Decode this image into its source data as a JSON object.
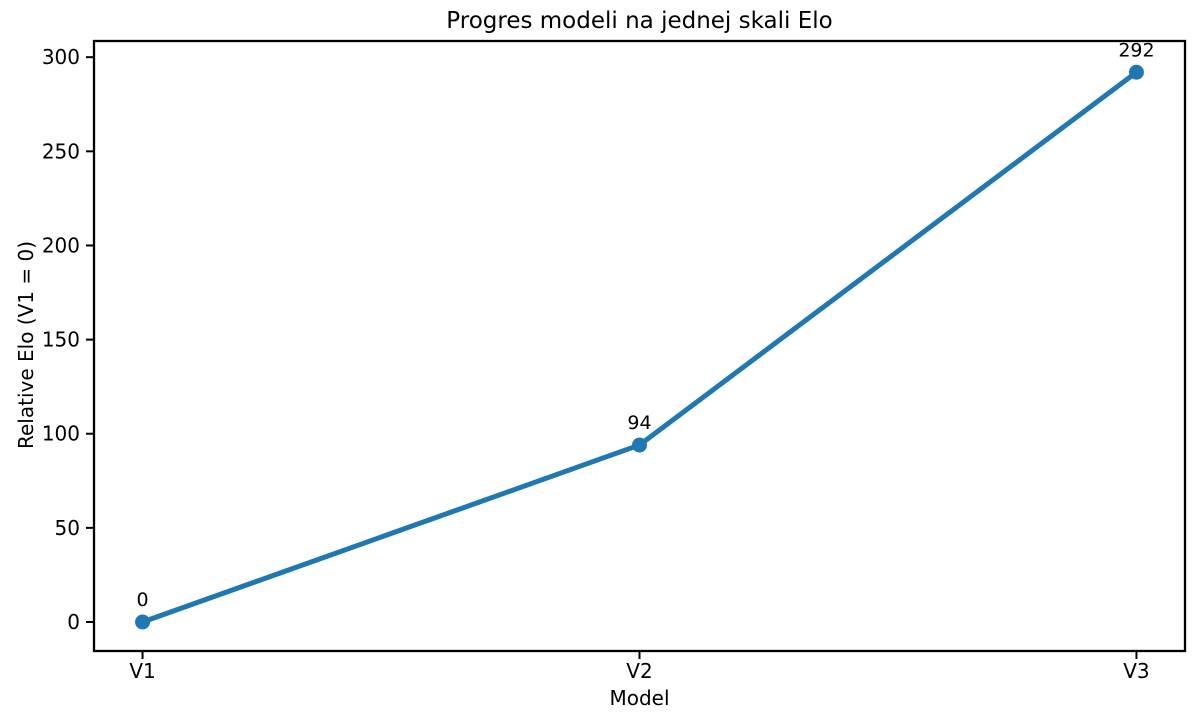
{
  "chart_data": {
    "type": "line",
    "title": "Progres modeli na jednej skali Elo",
    "xlabel": "Model",
    "ylabel": "Relative Elo (V1 = 0)",
    "categories": [
      "V1",
      "V2",
      "V3"
    ],
    "series": [
      {
        "name": "Relative Elo (V1 = 0)",
        "values": [
          0,
          94,
          292
        ]
      }
    ],
    "point_labels": [
      "0",
      "94",
      "292"
    ],
    "yticks": [
      0,
      50,
      100,
      150,
      200,
      250,
      300
    ],
    "ylim": [
      -15.4,
      308.6
    ],
    "grid": false,
    "legend_position": "none",
    "line_color": "#1f77b4",
    "marker": "circle",
    "axis_color": "#000000",
    "text_color": "#000000",
    "background_color": "#ffffff"
  }
}
